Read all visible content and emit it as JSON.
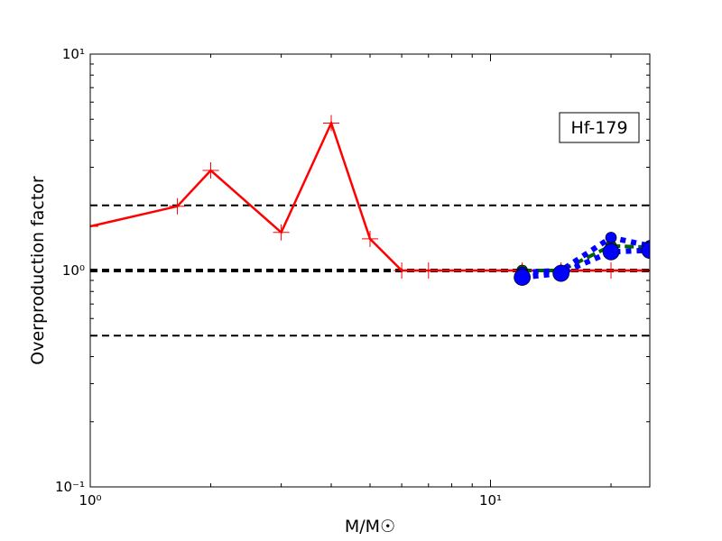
{
  "chart_data": {
    "type": "line",
    "xlabel": "M/M☉",
    "ylabel": "Overproduction factor",
    "annotation": "Hf-179",
    "xscale": "log",
    "yscale": "log",
    "xlim": [
      1,
      25
    ],
    "ylim": [
      0.1,
      10
    ],
    "xticks": [
      {
        "value": 1,
        "label": "10⁰"
      },
      {
        "value": 10,
        "label": "10¹"
      }
    ],
    "yticks": [
      {
        "value": 0.1,
        "label": "10⁻¹"
      },
      {
        "value": 1,
        "label": "10⁰"
      },
      {
        "value": 10,
        "label": "10¹"
      }
    ],
    "xminorticks": [
      2,
      3,
      4,
      5,
      6,
      7,
      8,
      9,
      20
    ],
    "yminorticks": [
      0.2,
      0.3,
      0.4,
      0.5,
      0.6,
      0.7,
      0.8,
      0.9,
      2,
      3,
      4,
      5,
      6,
      7,
      8,
      9
    ],
    "hlines": [
      {
        "value": 0.5,
        "width": 2
      },
      {
        "value": 1,
        "width": 4
      },
      {
        "value": 2,
        "width": 2
      }
    ],
    "series": [
      {
        "color": "#ff0000",
        "marker": "plus",
        "dash": "solid",
        "x": [
          1,
          1.65,
          2,
          3,
          4,
          5,
          6,
          7,
          12,
          15,
          20,
          25
        ],
        "values": [
          1.6,
          1.98,
          2.9,
          1.5,
          4.8,
          1.4,
          1,
          1,
          1,
          1,
          1,
          1
        ]
      },
      {
        "color": "#006400",
        "marker": "circle",
        "dash": "dashed",
        "x": [
          12,
          15,
          20,
          25
        ],
        "values": [
          1.0,
          1.0,
          1.3,
          1.28
        ]
      },
      {
        "color": "#0000ff",
        "marker": "circle",
        "dash": "dotted",
        "x": [
          12,
          15,
          20,
          25
        ],
        "values": [
          0.98,
          1.0,
          1.42,
          1.3
        ]
      },
      {
        "color": "#0000ff",
        "marker": "circle",
        "dash": "dotted",
        "x": [
          12,
          15,
          20,
          25
        ],
        "values": [
          0.93,
          0.97,
          1.22,
          1.24
        ]
      }
    ]
  }
}
